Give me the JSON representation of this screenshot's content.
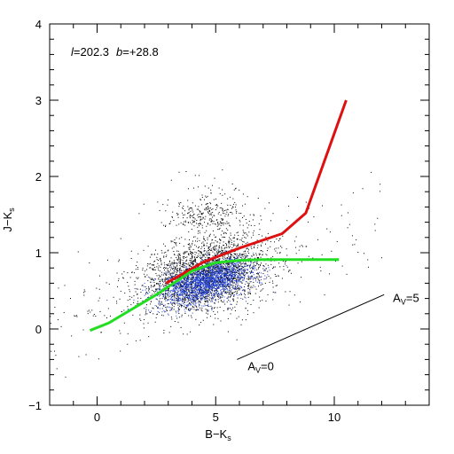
{
  "chart_data": {
    "type": "scatter",
    "title": "",
    "annotation_field": {
      "l_label": "l",
      "l_value": "=202.3",
      "b_label": "b",
      "b_value": "=+28.8"
    },
    "xlabel": {
      "main": "B−K",
      "sub": "s"
    },
    "ylabel": {
      "main": "J−K",
      "sub": "s"
    },
    "xlim": [
      -2,
      14
    ],
    "ylim": [
      -1,
      4
    ],
    "xticks": [
      0,
      5,
      10
    ],
    "yticks": [
      -1,
      0,
      1,
      2,
      3,
      4
    ],
    "x_minor_step": 1,
    "y_minor_step": 0.2,
    "grid": false,
    "series": [
      {
        "kind": "scatter",
        "color": "#000000",
        "cloud": {
          "center": [
            4.5,
            0.72
          ],
          "spread": [
            1.3,
            0.24
          ],
          "count": 2600
        },
        "sparse": {
          "xrange": [
            -2,
            12
          ],
          "yrange": [
            -0.8,
            1.6
          ],
          "count": 220
        },
        "upper_tail": {
          "center": [
            4.6,
            1.35
          ],
          "spread": [
            0.9,
            0.25
          ],
          "count": 280
        }
      },
      {
        "kind": "scatter",
        "color": "#1f3fd6",
        "cloud": {
          "center": [
            4.6,
            0.62
          ],
          "spread": [
            1.0,
            0.13
          ],
          "count": 1900,
          "tilt": 0.075
        }
      },
      {
        "kind": "line",
        "color": "#dd1111",
        "points": [
          [
            2.9,
            0.6
          ],
          [
            4.5,
            0.88
          ],
          [
            5.5,
            1.0
          ],
          [
            6.0,
            1.06
          ],
          [
            7.8,
            1.25
          ],
          [
            8.8,
            1.52
          ],
          [
            10.5,
            3.0
          ]
        ]
      },
      {
        "kind": "line",
        "color": "#22dd22",
        "points": [
          [
            -0.3,
            -0.02
          ],
          [
            0.5,
            0.08
          ],
          [
            2.5,
            0.45
          ],
          [
            4.0,
            0.76
          ],
          [
            5.0,
            0.87
          ],
          [
            6.0,
            0.9
          ],
          [
            7.0,
            0.91
          ],
          [
            10.2,
            0.91
          ]
        ]
      }
    ],
    "reddening_vector": {
      "start": [
        5.9,
        -0.4
      ],
      "end": [
        12.1,
        0.45
      ],
      "label_start": {
        "main": "A",
        "sub": "V",
        "value": "=0"
      },
      "label_end": {
        "main": "A",
        "sub": "V",
        "value": "=5"
      }
    }
  }
}
